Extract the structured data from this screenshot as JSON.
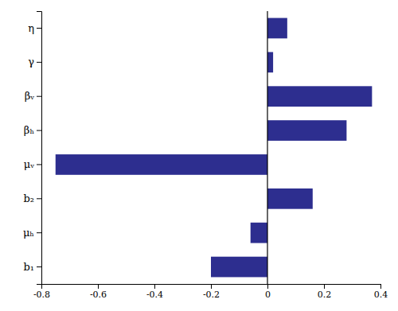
{
  "chart_data": {
    "type": "bar",
    "orientation": "horizontal",
    "categories": [
      "η",
      "γ",
      "βᵥ",
      "βₕ",
      "μᵥ",
      "b₂",
      "μₕ",
      "b₁"
    ],
    "values": [
      0.07,
      0.02,
      0.37,
      0.28,
      -0.75,
      0.16,
      -0.06,
      -0.2
    ],
    "color": "#2d2e8f",
    "xlim": [
      -0.8,
      0.4
    ],
    "xticks": [
      -0.8,
      -0.6,
      -0.4,
      -0.2,
      0,
      0.2,
      0.4
    ],
    "grid": false
  }
}
